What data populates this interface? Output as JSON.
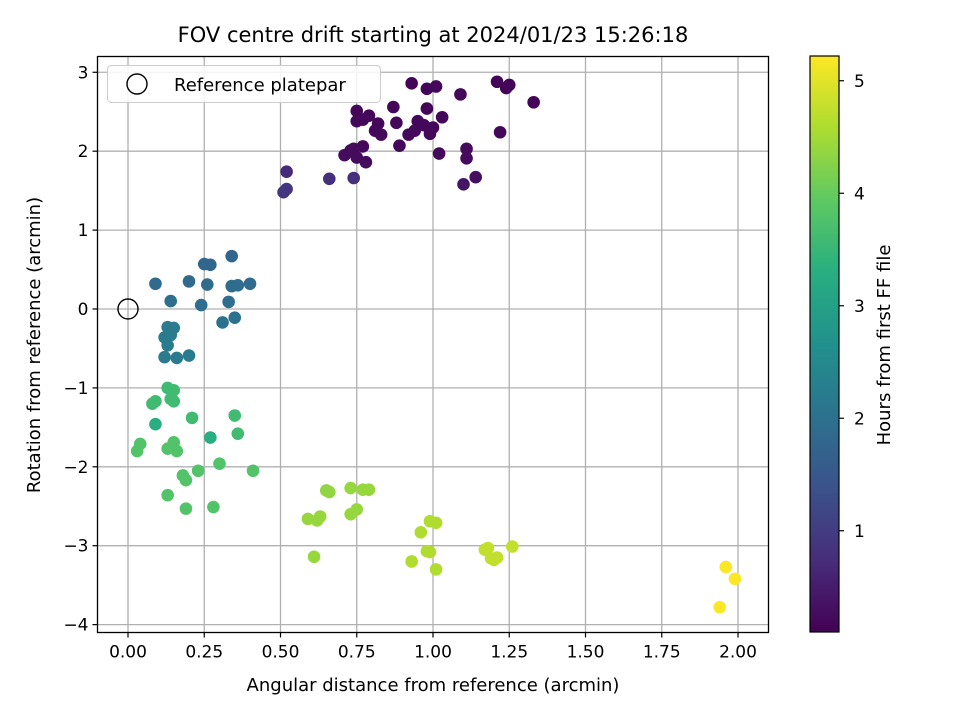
{
  "chart_data": {
    "type": "scatter",
    "title": "FOV centre drift starting at 2024/01/23 15:26:18",
    "xlabel": "Angular distance from reference (arcmin)",
    "ylabel": "Rotation from reference (arcmin)",
    "xlim": [
      -0.1,
      2.1
    ],
    "ylim": [
      -4.1,
      3.2
    ],
    "xticks": [
      0.0,
      0.25,
      0.5,
      0.75,
      1.0,
      1.25,
      1.5,
      1.75,
      2.0
    ],
    "xtick_labels": [
      "0.00",
      "0.25",
      "0.50",
      "0.75",
      "1.00",
      "1.25",
      "1.50",
      "1.75",
      "2.00"
    ],
    "yticks": [
      -4,
      -3,
      -2,
      -1,
      0,
      1,
      2,
      3
    ],
    "ytick_labels": [
      "−4",
      "−3",
      "−2",
      "−1",
      "0",
      "1",
      "2",
      "3"
    ],
    "grid": true,
    "legend": {
      "position": "top-left",
      "entries": [
        {
          "label": "Reference platepar",
          "marker": "open-circle"
        }
      ]
    },
    "reference_point": {
      "x": 0.0,
      "y": 0.0
    },
    "colorbar": {
      "label": "Hours from first FF file",
      "range": [
        0.1,
        5.22
      ],
      "ticks": [
        1,
        2,
        3,
        4,
        5
      ],
      "tick_labels": [
        "1",
        "2",
        "3",
        "4",
        "5"
      ],
      "colormap": "viridis"
    },
    "points": [
      {
        "x": 0.93,
        "y": 2.86,
        "c": 0.15
      },
      {
        "x": 0.98,
        "y": 2.79,
        "c": 0.18
      },
      {
        "x": 1.01,
        "y": 2.82,
        "c": 0.2
      },
      {
        "x": 1.09,
        "y": 2.72,
        "c": 0.2
      },
      {
        "x": 1.21,
        "y": 2.88,
        "c": 0.15
      },
      {
        "x": 1.24,
        "y": 2.8,
        "c": 0.15
      },
      {
        "x": 1.25,
        "y": 2.84,
        "c": 0.15
      },
      {
        "x": 1.33,
        "y": 2.62,
        "c": 0.15
      },
      {
        "x": 0.87,
        "y": 2.56,
        "c": 0.18
      },
      {
        "x": 0.98,
        "y": 2.54,
        "c": 0.15
      },
      {
        "x": 0.75,
        "y": 2.51,
        "c": 0.18
      },
      {
        "x": 0.79,
        "y": 2.45,
        "c": 0.18
      },
      {
        "x": 0.75,
        "y": 2.38,
        "c": 0.2
      },
      {
        "x": 0.77,
        "y": 2.4,
        "c": 0.22
      },
      {
        "x": 0.82,
        "y": 2.35,
        "c": 0.2
      },
      {
        "x": 0.88,
        "y": 2.36,
        "c": 0.2
      },
      {
        "x": 0.95,
        "y": 2.38,
        "c": 0.2
      },
      {
        "x": 0.97,
        "y": 2.33,
        "c": 0.2
      },
      {
        "x": 1.0,
        "y": 2.3,
        "c": 0.2
      },
      {
        "x": 1.03,
        "y": 2.43,
        "c": 0.2
      },
      {
        "x": 0.81,
        "y": 2.26,
        "c": 0.22
      },
      {
        "x": 0.83,
        "y": 2.21,
        "c": 0.22
      },
      {
        "x": 0.92,
        "y": 2.21,
        "c": 0.22
      },
      {
        "x": 0.94,
        "y": 2.26,
        "c": 0.22
      },
      {
        "x": 0.99,
        "y": 2.22,
        "c": 0.22
      },
      {
        "x": 1.22,
        "y": 2.24,
        "c": 0.2
      },
      {
        "x": 0.77,
        "y": 2.06,
        "c": 0.22
      },
      {
        "x": 0.89,
        "y": 2.07,
        "c": 0.2
      },
      {
        "x": 0.71,
        "y": 1.95,
        "c": 0.25
      },
      {
        "x": 0.73,
        "y": 2.01,
        "c": 0.25
      },
      {
        "x": 0.74,
        "y": 2.03,
        "c": 0.25
      },
      {
        "x": 0.75,
        "y": 1.92,
        "c": 0.25
      },
      {
        "x": 0.78,
        "y": 1.86,
        "c": 0.25
      },
      {
        "x": 1.02,
        "y": 1.97,
        "c": 0.22
      },
      {
        "x": 1.11,
        "y": 2.03,
        "c": 0.25
      },
      {
        "x": 1.11,
        "y": 1.91,
        "c": 0.25
      },
      {
        "x": 1.14,
        "y": 1.67,
        "c": 0.3
      },
      {
        "x": 1.1,
        "y": 1.58,
        "c": 0.4
      },
      {
        "x": 0.52,
        "y": 1.74,
        "c": 0.7
      },
      {
        "x": 0.66,
        "y": 1.65,
        "c": 0.8
      },
      {
        "x": 0.74,
        "y": 1.66,
        "c": 0.8
      },
      {
        "x": 0.51,
        "y": 1.48,
        "c": 0.9
      },
      {
        "x": 0.52,
        "y": 1.52,
        "c": 0.9
      },
      {
        "x": 0.34,
        "y": 0.67,
        "c": 1.75
      },
      {
        "x": 0.25,
        "y": 0.57,
        "c": 1.8
      },
      {
        "x": 0.27,
        "y": 0.56,
        "c": 1.8
      },
      {
        "x": 0.09,
        "y": 0.32,
        "c": 1.85
      },
      {
        "x": 0.2,
        "y": 0.35,
        "c": 1.85
      },
      {
        "x": 0.26,
        "y": 0.31,
        "c": 1.85
      },
      {
        "x": 0.34,
        "y": 0.29,
        "c": 1.9
      },
      {
        "x": 0.36,
        "y": 0.3,
        "c": 1.9
      },
      {
        "x": 0.4,
        "y": 0.32,
        "c": 1.9
      },
      {
        "x": 0.14,
        "y": 0.1,
        "c": 1.95
      },
      {
        "x": 0.24,
        "y": 0.05,
        "c": 1.95
      },
      {
        "x": 0.33,
        "y": 0.09,
        "c": 1.95
      },
      {
        "x": 0.35,
        "y": -0.11,
        "c": 2.0
      },
      {
        "x": 0.31,
        "y": -0.17,
        "c": 2.0
      },
      {
        "x": 0.13,
        "y": -0.23,
        "c": 2.2
      },
      {
        "x": 0.15,
        "y": -0.24,
        "c": 2.2
      },
      {
        "x": 0.12,
        "y": -0.36,
        "c": 2.2
      },
      {
        "x": 0.14,
        "y": -0.33,
        "c": 2.2
      },
      {
        "x": 0.13,
        "y": -0.46,
        "c": 2.2
      },
      {
        "x": 0.12,
        "y": -0.61,
        "c": 2.2
      },
      {
        "x": 0.16,
        "y": -0.62,
        "c": 2.2
      },
      {
        "x": 0.2,
        "y": -0.59,
        "c": 2.2
      },
      {
        "x": 0.13,
        "y": -1.0,
        "c": 3.6
      },
      {
        "x": 0.15,
        "y": -1.03,
        "c": 3.6
      },
      {
        "x": 0.14,
        "y": -1.14,
        "c": 3.6
      },
      {
        "x": 0.09,
        "y": -1.17,
        "c": 3.6
      },
      {
        "x": 0.08,
        "y": -1.2,
        "c": 3.6
      },
      {
        "x": 0.15,
        "y": -1.17,
        "c": 3.6
      },
      {
        "x": 0.21,
        "y": -1.38,
        "c": 3.6
      },
      {
        "x": 0.09,
        "y": -1.46,
        "c": 3.3
      },
      {
        "x": 0.35,
        "y": -1.35,
        "c": 3.6
      },
      {
        "x": 0.36,
        "y": -1.58,
        "c": 3.6
      },
      {
        "x": 0.27,
        "y": -1.63,
        "c": 3.3
      },
      {
        "x": 0.04,
        "y": -1.71,
        "c": 3.8
      },
      {
        "x": 0.03,
        "y": -1.8,
        "c": 3.8
      },
      {
        "x": 0.13,
        "y": -1.77,
        "c": 3.8
      },
      {
        "x": 0.15,
        "y": -1.69,
        "c": 3.8
      },
      {
        "x": 0.16,
        "y": -1.8,
        "c": 3.8
      },
      {
        "x": 0.3,
        "y": -1.96,
        "c": 3.8
      },
      {
        "x": 0.23,
        "y": -2.05,
        "c": 3.8
      },
      {
        "x": 0.18,
        "y": -2.11,
        "c": 3.8
      },
      {
        "x": 0.19,
        "y": -2.17,
        "c": 3.8
      },
      {
        "x": 0.41,
        "y": -2.05,
        "c": 3.8
      },
      {
        "x": 0.13,
        "y": -2.36,
        "c": 3.8
      },
      {
        "x": 0.19,
        "y": -2.53,
        "c": 3.8
      },
      {
        "x": 0.28,
        "y": -2.51,
        "c": 3.8
      },
      {
        "x": 0.65,
        "y": -2.3,
        "c": 4.35
      },
      {
        "x": 0.66,
        "y": -2.32,
        "c": 4.35
      },
      {
        "x": 0.73,
        "y": -2.27,
        "c": 4.4
      },
      {
        "x": 0.77,
        "y": -2.29,
        "c": 4.4
      },
      {
        "x": 0.79,
        "y": -2.29,
        "c": 4.4
      },
      {
        "x": 0.75,
        "y": -2.54,
        "c": 4.4
      },
      {
        "x": 0.73,
        "y": -2.6,
        "c": 4.4
      },
      {
        "x": 0.59,
        "y": -2.66,
        "c": 4.4
      },
      {
        "x": 0.62,
        "y": -2.68,
        "c": 4.4
      },
      {
        "x": 0.63,
        "y": -2.63,
        "c": 4.4
      },
      {
        "x": 0.61,
        "y": -3.14,
        "c": 4.4
      },
      {
        "x": 0.96,
        "y": -2.83,
        "c": 4.6
      },
      {
        "x": 0.99,
        "y": -2.69,
        "c": 4.6
      },
      {
        "x": 1.01,
        "y": -2.71,
        "c": 4.6
      },
      {
        "x": 0.98,
        "y": -3.07,
        "c": 4.6
      },
      {
        "x": 0.99,
        "y": -3.08,
        "c": 4.6
      },
      {
        "x": 0.93,
        "y": -3.2,
        "c": 4.6
      },
      {
        "x": 1.01,
        "y": -3.3,
        "c": 4.6
      },
      {
        "x": 1.17,
        "y": -3.05,
        "c": 4.75
      },
      {
        "x": 1.18,
        "y": -3.03,
        "c": 4.75
      },
      {
        "x": 1.26,
        "y": -3.01,
        "c": 4.75
      },
      {
        "x": 1.19,
        "y": -3.16,
        "c": 4.75
      },
      {
        "x": 1.21,
        "y": -3.15,
        "c": 4.75
      },
      {
        "x": 1.2,
        "y": -3.18,
        "c": 4.75
      },
      {
        "x": 1.96,
        "y": -3.27,
        "c": 5.2
      },
      {
        "x": 1.99,
        "y": -3.42,
        "c": 5.2
      },
      {
        "x": 1.94,
        "y": -3.78,
        "c": 5.2
      }
    ]
  }
}
